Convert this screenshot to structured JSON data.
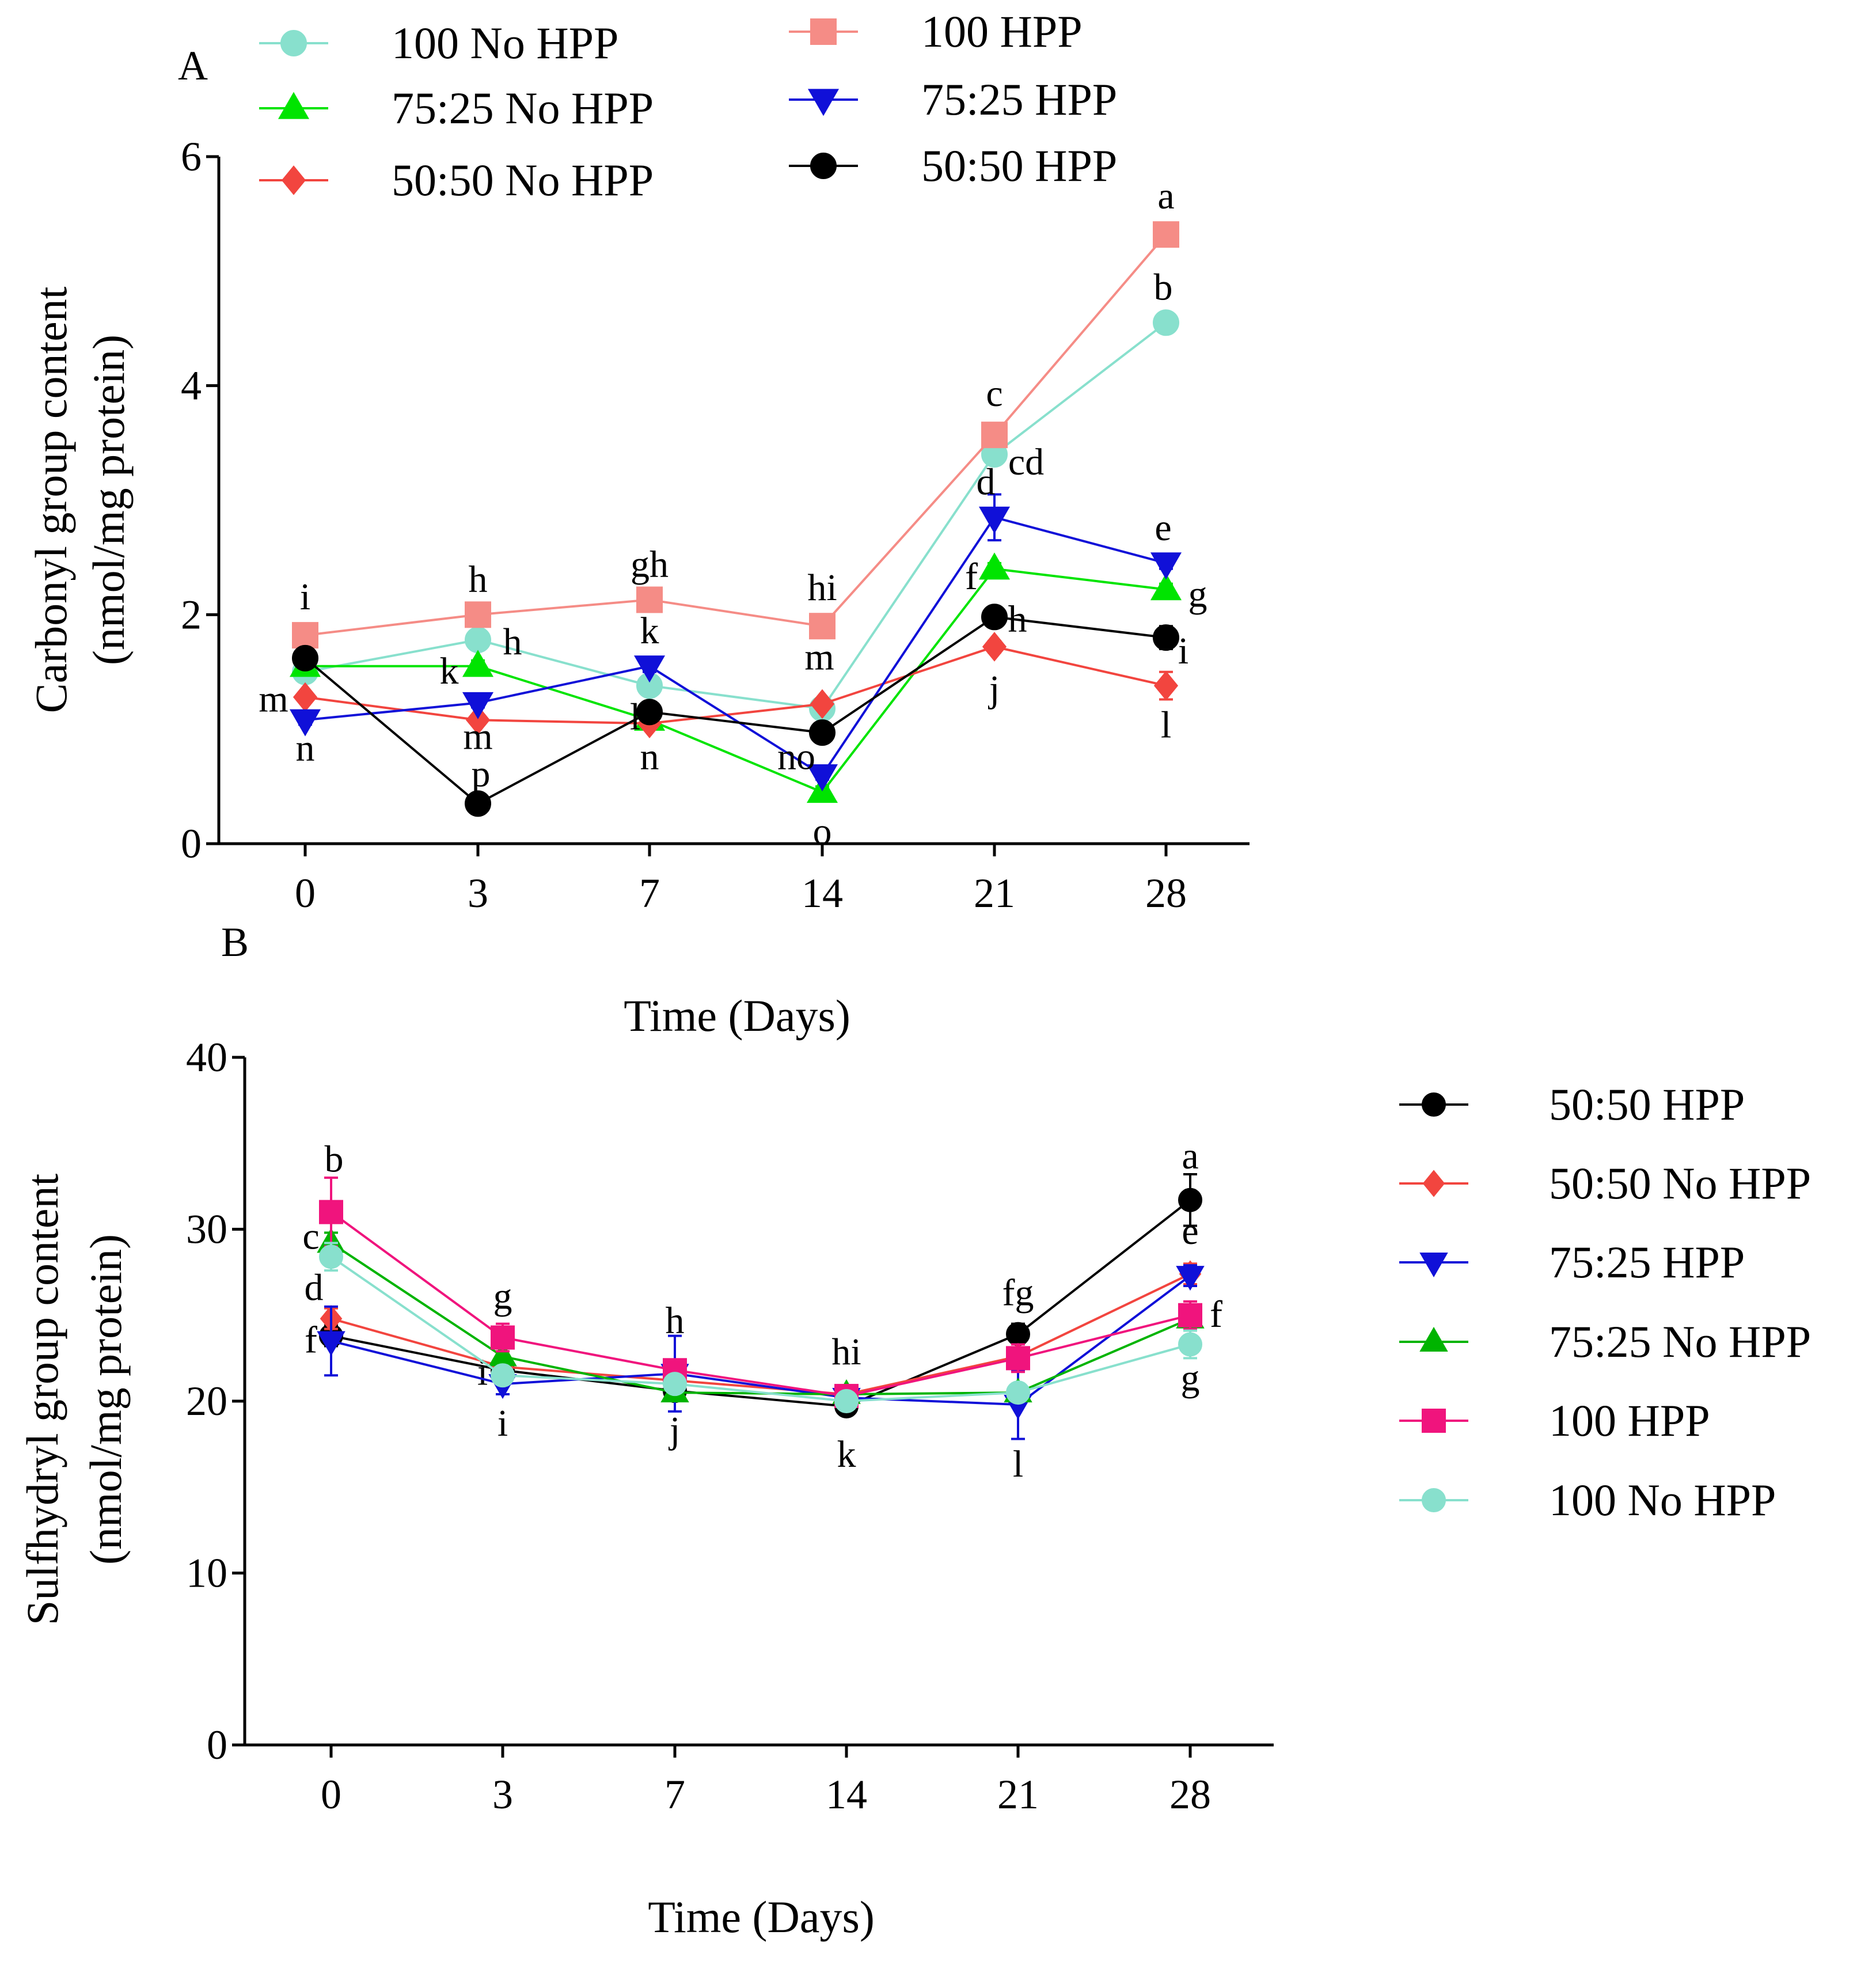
{
  "chart_data": [
    {
      "panel": "A",
      "type": "line",
      "xlabel": "Time (Days)",
      "ylabel_line1": "Carbonyl group content",
      "ylabel_line2": "(nmol/mg protein)",
      "ylim": [
        0,
        6
      ],
      "yticks": [
        "0",
        "2",
        "4",
        "6"
      ],
      "categories": [
        "0",
        "3",
        "7",
        "14",
        "21",
        "28"
      ],
      "series": [
        {
          "key": "100_no_hpp",
          "name": "100 No HPP",
          "color": "#88E0CD",
          "marker": "circle",
          "values": [
            1.5,
            1.78,
            1.38,
            1.18,
            3.4,
            4.55
          ],
          "errors": [
            0.05,
            0.05,
            0.05,
            0.05,
            0.08,
            0.05
          ],
          "labels": [
            null,
            "h",
            null,
            null,
            "cd",
            "b"
          ]
        },
        {
          "key": "75_25_no_hpp",
          "name": "75:25 No HPP",
          "color": "#00E400",
          "marker": "triangle-up",
          "values": [
            1.55,
            1.55,
            1.08,
            0.45,
            2.4,
            2.22
          ],
          "errors": [
            0.05,
            0.05,
            0.05,
            0.05,
            0.05,
            0.05
          ],
          "labels": [
            null,
            "k",
            "n",
            "o",
            "f",
            "g"
          ]
        },
        {
          "key": "50_50_no_hpp",
          "name": "50:50 No HPP",
          "color": "#F2453F",
          "marker": "diamond",
          "values": [
            1.28,
            1.08,
            1.05,
            1.22,
            1.72,
            1.38
          ],
          "errors": [
            0.04,
            0.04,
            0.04,
            0.04,
            0.05,
            0.12
          ],
          "labels": [
            "m",
            "m",
            null,
            "m",
            "j",
            "l"
          ]
        },
        {
          "key": "100_hpp",
          "name": "100 HPP",
          "color": "#F58C86",
          "marker": "square",
          "values": [
            1.82,
            2.0,
            2.13,
            1.9,
            3.57,
            5.32
          ],
          "errors": [
            0.05,
            0.05,
            0.05,
            0.05,
            0.08,
            0.05
          ],
          "labels": [
            "i",
            "h",
            "gh",
            "hi",
            "c",
            "a"
          ]
        },
        {
          "key": "75_25_hpp",
          "name": "75:25 HPP",
          "color": "#1010D8",
          "marker": "triangle-down",
          "values": [
            1.08,
            1.23,
            1.55,
            0.6,
            2.85,
            2.45
          ],
          "errors": [
            0.04,
            0.04,
            0.05,
            0.04,
            0.2,
            0.05
          ],
          "labels": [
            "n",
            null,
            "k",
            "no",
            "d",
            "e"
          ]
        },
        {
          "key": "50_50_hpp",
          "name": "50:50 HPP",
          "color": "#000000",
          "marker": "circle",
          "values": [
            1.62,
            0.35,
            1.15,
            0.97,
            1.98,
            1.8
          ],
          "errors": [
            0.04,
            0.04,
            0.04,
            0.05,
            0.05,
            0.1
          ],
          "labels": [
            null,
            "p",
            "l",
            null,
            "h",
            "i"
          ]
        }
      ],
      "legend_position": "top"
    },
    {
      "panel": "B",
      "type": "line",
      "xlabel": "Time (Days)",
      "ylabel_line1": "Sulfhydryl group content",
      "ylabel_line2": "(nmol/mg protein)",
      "ylim": [
        0,
        40
      ],
      "yticks": [
        "0",
        "10",
        "20",
        "30",
        "40"
      ],
      "categories": [
        "0",
        "3",
        "7",
        "14",
        "21",
        "28"
      ],
      "series": [
        {
          "key": "50_50_hpp",
          "name": "50:50 HPP",
          "color": "#000000",
          "marker": "circle",
          "values": [
            23.8,
            21.8,
            20.6,
            19.7,
            23.9,
            31.7
          ],
          "errors": [
            0.6,
            0.5,
            0.5,
            0.5,
            0.6,
            1.5
          ],
          "labels": [
            null,
            "i",
            null,
            null,
            "fg",
            "a"
          ]
        },
        {
          "key": "50_50_no_hpp",
          "name": "50:50 No HPP",
          "color": "#F2453F",
          "marker": "diamond",
          "values": [
            24.8,
            22.0,
            21.2,
            20.4,
            22.6,
            27.4
          ],
          "errors": [
            0.6,
            0.5,
            0.5,
            0.5,
            0.5,
            0.6
          ],
          "labels": [
            null,
            null,
            null,
            null,
            null,
            null
          ]
        },
        {
          "key": "75_25_hpp",
          "name": "75:25 HPP",
          "color": "#1010D8",
          "marker": "triangle-down",
          "values": [
            23.5,
            21.0,
            21.6,
            20.2,
            19.8,
            27.3
          ],
          "errors": [
            2.0,
            0.6,
            2.2,
            0.6,
            2.0,
            0.6
          ],
          "labels": [
            "f",
            "i",
            "j",
            "k",
            "l",
            "e"
          ]
        },
        {
          "key": "75_25_no_hpp",
          "name": "75:25 No HPP",
          "color": "#00B400",
          "marker": "triangle-up",
          "values": [
            29.2,
            22.6,
            20.5,
            20.4,
            20.5,
            24.8
          ],
          "errors": [
            0.6,
            0.5,
            0.5,
            0.5,
            0.5,
            0.6
          ],
          "labels": [
            "c",
            null,
            null,
            null,
            null,
            null
          ]
        },
        {
          "key": "100_hpp",
          "name": "100  HPP",
          "color": "#F0147D",
          "marker": "square",
          "values": [
            31.0,
            23.7,
            21.8,
            20.3,
            22.5,
            25.0
          ],
          "errors": [
            2.0,
            0.8,
            0.6,
            0.6,
            0.8,
            0.8
          ],
          "labels": [
            "b",
            "g",
            "h",
            "hi",
            null,
            "f"
          ]
        },
        {
          "key": "100_no_hpp",
          "name": "100 No HPP",
          "color": "#88E0CD",
          "marker": "circle",
          "values": [
            28.4,
            21.5,
            21.0,
            20.0,
            20.5,
            23.3
          ],
          "errors": [
            0.8,
            0.5,
            0.5,
            0.5,
            0.5,
            0.8
          ],
          "labels": [
            "d",
            null,
            null,
            null,
            null,
            "g"
          ]
        }
      ],
      "legend_position": "right"
    }
  ]
}
